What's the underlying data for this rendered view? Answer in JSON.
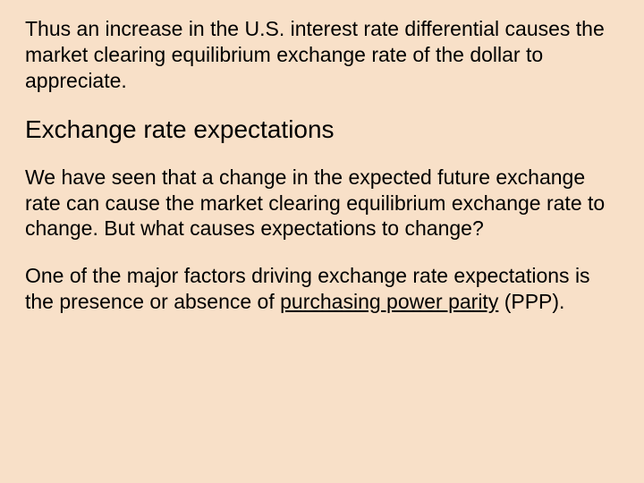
{
  "slide": {
    "background_color": "#f8e0c8",
    "text_color": "#000000",
    "paragraphs": {
      "intro": "Thus an increase in the U.S. interest rate differential causes the market clearing equilibrium exchange rate of the dollar to appreciate.",
      "heading": "Exchange rate expectations",
      "body1": "We have seen that a change in the expected future exchange rate can cause the market clearing equilibrium exchange rate to change.  But what causes expectations to change?",
      "body2_pre": "One of the major factors driving exchange rate expectations is the presence or absence of ",
      "body2_underline": "purchasing power parity",
      "body2_post": " (PPP)."
    },
    "typography": {
      "paragraph_fontsize": 23,
      "heading_fontsize": 28,
      "font_family": "Arial"
    }
  }
}
